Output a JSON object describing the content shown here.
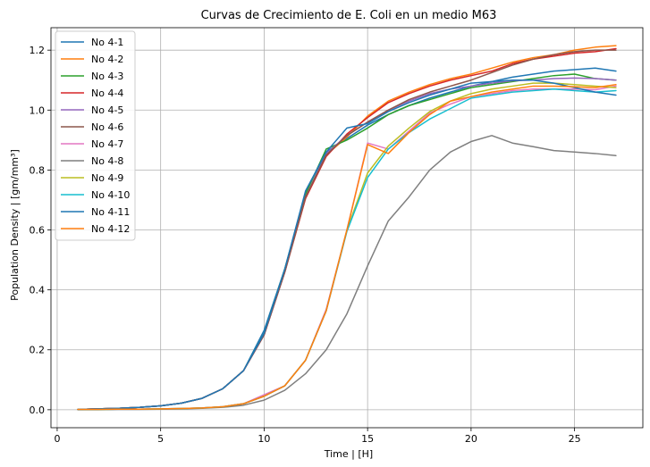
{
  "chart_data": {
    "type": "line",
    "title": "Curvas de Crecimiento de E. Coli en un medio M63",
    "xlabel": "Time | [H]",
    "ylabel": "Population Density | [gm/mm³]",
    "xlim": [
      -0.3,
      28.3
    ],
    "ylim": [
      -0.06,
      1.275
    ],
    "xticks": [
      0,
      5,
      10,
      15,
      20,
      25
    ],
    "yticks": [
      0.0,
      0.2,
      0.4,
      0.6,
      0.8,
      1.0,
      1.2
    ],
    "xtick_labels": [
      "0",
      "5",
      "10",
      "15",
      "20",
      "25"
    ],
    "ytick_labels": [
      "0.0",
      "0.2",
      "0.4",
      "0.6",
      "0.8",
      "1.0",
      "1.2"
    ],
    "grid": true,
    "legend_position": "top-left",
    "x": [
      1,
      2,
      3,
      4,
      5,
      6,
      7,
      8,
      9,
      10,
      11,
      12,
      13,
      14,
      15,
      16,
      17,
      18,
      19,
      20,
      21,
      22,
      23,
      24,
      25,
      26,
      27
    ],
    "series": [
      {
        "name": "No 4-1",
        "color": "#1f77b4",
        "values": [
          0.001,
          0.003,
          0.005,
          0.008,
          0.013,
          0.022,
          0.038,
          0.07,
          0.13,
          0.265,
          0.47,
          0.725,
          0.86,
          0.905,
          0.95,
          0.985,
          1.015,
          1.04,
          1.06,
          1.08,
          1.095,
          1.11,
          1.12,
          1.13,
          1.135,
          1.14,
          1.13
        ]
      },
      {
        "name": "No 4-2",
        "color": "#ff7f0e",
        "values": [
          0.001,
          0.003,
          0.005,
          0.008,
          0.013,
          0.022,
          0.038,
          0.07,
          0.13,
          0.25,
          0.46,
          0.705,
          0.85,
          0.91,
          0.98,
          1.03,
          1.06,
          1.085,
          1.105,
          1.12,
          1.14,
          1.16,
          1.175,
          1.185,
          1.2,
          1.21,
          1.215
        ]
      },
      {
        "name": "No 4-3",
        "color": "#2ca02c",
        "values": [
          0.001,
          0.003,
          0.005,
          0.008,
          0.013,
          0.022,
          0.038,
          0.07,
          0.13,
          0.255,
          0.47,
          0.72,
          0.87,
          0.9,
          0.94,
          0.985,
          1.015,
          1.035,
          1.055,
          1.075,
          1.085,
          1.095,
          1.105,
          1.115,
          1.12,
          1.105,
          1.1
        ]
      },
      {
        "name": "No 4-4",
        "color": "#d62728",
        "values": [
          0.001,
          0.003,
          0.005,
          0.008,
          0.013,
          0.022,
          0.038,
          0.07,
          0.13,
          0.25,
          0.46,
          0.705,
          0.845,
          0.92,
          0.975,
          1.025,
          1.055,
          1.08,
          1.1,
          1.115,
          1.13,
          1.155,
          1.17,
          1.18,
          1.19,
          1.195,
          1.205
        ]
      },
      {
        "name": "No 4-5",
        "color": "#9467bd",
        "values": [
          0.001,
          0.003,
          0.005,
          0.008,
          0.013,
          0.022,
          0.038,
          0.07,
          0.13,
          0.25,
          0.46,
          0.71,
          0.855,
          0.915,
          0.96,
          1.0,
          1.03,
          1.055,
          1.07,
          1.08,
          1.09,
          1.098,
          1.1,
          1.105,
          1.107,
          1.105,
          1.1
        ]
      },
      {
        "name": "No 4-6",
        "color": "#8c564b",
        "values": [
          0.001,
          0.003,
          0.005,
          0.008,
          0.013,
          0.022,
          0.038,
          0.07,
          0.13,
          0.25,
          0.46,
          0.71,
          0.85,
          0.915,
          0.96,
          1.0,
          1.035,
          1.06,
          1.08,
          1.1,
          1.125,
          1.15,
          1.17,
          1.185,
          1.195,
          1.2,
          1.2
        ]
      },
      {
        "name": "No 4-7",
        "color": "#e377c2",
        "values": [
          0.001,
          0.001,
          0.002,
          0.002,
          0.003,
          0.004,
          0.006,
          0.01,
          0.02,
          0.05,
          0.08,
          0.165,
          0.335,
          0.6,
          0.89,
          0.87,
          0.93,
          0.99,
          1.02,
          1.045,
          1.055,
          1.065,
          1.07,
          1.07,
          1.07,
          1.068,
          1.08
        ]
      },
      {
        "name": "No 4-8",
        "color": "#7f7f7f",
        "values": [
          0.0,
          0.0,
          0.001,
          0.001,
          0.002,
          0.003,
          0.005,
          0.008,
          0.015,
          0.032,
          0.065,
          0.12,
          0.2,
          0.32,
          0.48,
          0.63,
          0.71,
          0.8,
          0.86,
          0.895,
          0.915,
          0.89,
          0.878,
          0.865,
          0.86,
          0.855,
          0.848
        ]
      },
      {
        "name": "No 4-9",
        "color": "#bcbd22",
        "values": [
          0.001,
          0.001,
          0.002,
          0.002,
          0.003,
          0.004,
          0.006,
          0.01,
          0.02,
          0.045,
          0.08,
          0.165,
          0.33,
          0.6,
          0.79,
          0.88,
          0.94,
          0.995,
          1.03,
          1.055,
          1.07,
          1.08,
          1.09,
          1.09,
          1.085,
          1.08,
          1.075
        ]
      },
      {
        "name": "No 4-10",
        "color": "#17becf",
        "values": [
          0.001,
          0.001,
          0.002,
          0.002,
          0.003,
          0.004,
          0.006,
          0.01,
          0.02,
          0.045,
          0.08,
          0.165,
          0.33,
          0.595,
          0.775,
          0.87,
          0.925,
          0.97,
          1.005,
          1.04,
          1.05,
          1.06,
          1.065,
          1.07,
          1.065,
          1.06,
          1.065
        ]
      },
      {
        "name": "No 4-11",
        "color": "#1f77b4",
        "values": [
          0.001,
          0.003,
          0.005,
          0.008,
          0.013,
          0.022,
          0.038,
          0.07,
          0.13,
          0.255,
          0.47,
          0.73,
          0.86,
          0.94,
          0.955,
          0.995,
          1.025,
          1.05,
          1.07,
          1.09,
          1.095,
          1.1,
          1.1,
          1.09,
          1.075,
          1.06,
          1.05
        ]
      },
      {
        "name": "No 4-12",
        "color": "#ff7f0e",
        "values": [
          0.001,
          0.001,
          0.002,
          0.002,
          0.003,
          0.004,
          0.006,
          0.01,
          0.02,
          0.045,
          0.08,
          0.165,
          0.33,
          0.6,
          0.885,
          0.855,
          0.925,
          0.985,
          1.03,
          1.045,
          1.06,
          1.07,
          1.08,
          1.08,
          1.078,
          1.075,
          1.085
        ]
      }
    ]
  }
}
